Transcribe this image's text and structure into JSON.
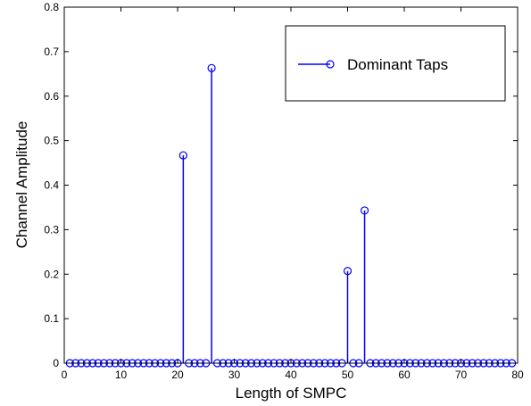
{
  "chart_data": {
    "type": "stem",
    "title": "",
    "xlabel": "Length of SMPC",
    "ylabel": "Channel Amplitude",
    "xlim": [
      0,
      80
    ],
    "ylim": [
      0,
      0.8
    ],
    "xticks": [
      0,
      10,
      20,
      30,
      40,
      50,
      60,
      70,
      80
    ],
    "yticks": [
      0,
      0.1,
      0.2,
      0.3,
      0.4,
      0.5,
      0.6,
      0.7,
      0.8
    ],
    "grid": false,
    "legend_position": "top-right",
    "series": [
      {
        "name": "Dominant Taps",
        "color": "#0000ff",
        "marker": "circle",
        "x_start": 1,
        "x_end": 79,
        "nonzero": [
          {
            "x": 21,
            "y": 0.467
          },
          {
            "x": 26,
            "y": 0.663
          },
          {
            "x": 50,
            "y": 0.207
          },
          {
            "x": 53,
            "y": 0.343
          }
        ]
      }
    ]
  }
}
